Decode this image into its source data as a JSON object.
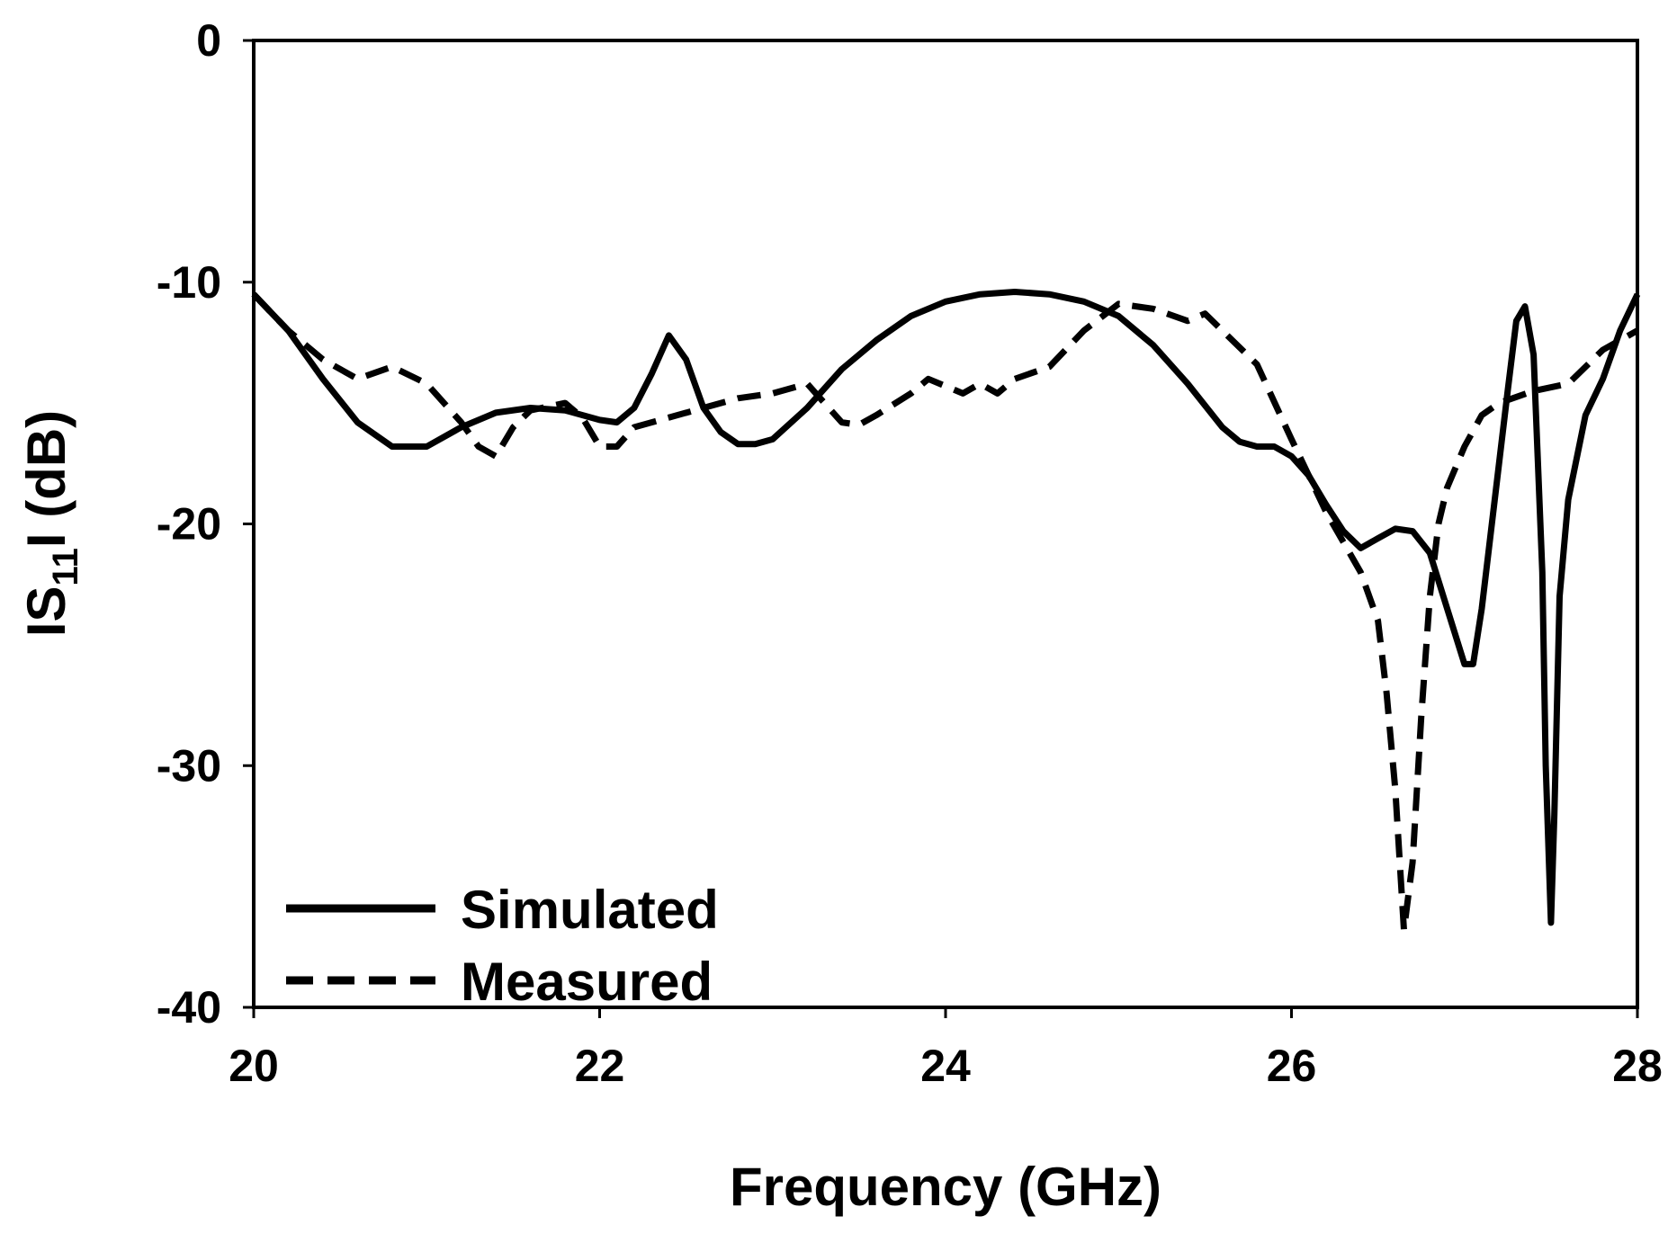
{
  "chart_data": {
    "type": "line",
    "title": "",
    "xlabel": "Frequency (GHz)",
    "ylabel": {
      "prefix": "IS",
      "subscript": "11",
      "suffix": "I (dB)"
    },
    "xlim": [
      20,
      28
    ],
    "ylim": [
      -40,
      0
    ],
    "xticks": [
      20,
      22,
      24,
      26,
      28
    ],
    "yticks": [
      0,
      -10,
      -20,
      -30,
      -40
    ],
    "xtick_labels": [
      "20",
      "22",
      "24",
      "26",
      "28"
    ],
    "ytick_labels": [
      "0",
      "-10",
      "-20",
      "-30",
      "-40"
    ],
    "grid": false,
    "legend_position": "bottom-left",
    "line_color": "#000000",
    "series": [
      {
        "name": "Simulated",
        "style": "solid",
        "x": [
          20.0,
          20.2,
          20.4,
          20.6,
          20.8,
          21.0,
          21.2,
          21.4,
          21.6,
          21.8,
          22.0,
          22.1,
          22.2,
          22.3,
          22.4,
          22.5,
          22.6,
          22.7,
          22.8,
          22.9,
          23.0,
          23.2,
          23.4,
          23.6,
          23.8,
          24.0,
          24.2,
          24.4,
          24.6,
          24.8,
          25.0,
          25.2,
          25.4,
          25.6,
          25.7,
          25.8,
          25.9,
          26.0,
          26.1,
          26.2,
          26.3,
          26.4,
          26.5,
          26.6,
          26.7,
          26.8,
          26.9,
          27.0,
          27.05,
          27.1,
          27.15,
          27.2,
          27.25,
          27.3,
          27.35,
          27.4,
          27.45,
          27.47,
          27.5,
          27.52,
          27.55,
          27.6,
          27.7,
          27.8,
          27.9,
          28.0
        ],
        "y": [
          -10.5,
          -12.0,
          -14.0,
          -15.8,
          -16.8,
          -16.8,
          -16.0,
          -15.4,
          -15.2,
          -15.3,
          -15.7,
          -15.8,
          -15.2,
          -13.8,
          -12.2,
          -13.2,
          -15.2,
          -16.2,
          -16.7,
          -16.7,
          -16.5,
          -15.2,
          -13.6,
          -12.4,
          -11.4,
          -10.8,
          -10.5,
          -10.4,
          -10.5,
          -10.8,
          -11.4,
          -12.6,
          -14.2,
          -16.0,
          -16.6,
          -16.8,
          -16.8,
          -17.2,
          -18.0,
          -19.2,
          -20.3,
          -21.0,
          -20.6,
          -20.2,
          -20.3,
          -21.2,
          -23.5,
          -25.8,
          -25.8,
          -23.5,
          -20.5,
          -17.5,
          -14.5,
          -11.6,
          -11.0,
          -13.0,
          -22.0,
          -30.0,
          -36.5,
          -32.0,
          -23.0,
          -19.0,
          -15.5,
          -14.0,
          -12.0,
          -10.5
        ]
      },
      {
        "name": "Measured",
        "style": "dashed",
        "x": [
          20.0,
          20.2,
          20.4,
          20.6,
          20.8,
          21.0,
          21.2,
          21.3,
          21.4,
          21.5,
          21.6,
          21.8,
          21.9,
          22.0,
          22.1,
          22.2,
          22.4,
          22.6,
          22.8,
          23.0,
          23.2,
          23.3,
          23.4,
          23.5,
          23.6,
          23.8,
          23.9,
          24.0,
          24.1,
          24.2,
          24.3,
          24.4,
          24.6,
          24.8,
          25.0,
          25.2,
          25.4,
          25.5,
          25.6,
          25.8,
          26.0,
          26.2,
          26.4,
          26.5,
          26.55,
          26.6,
          26.65,
          26.7,
          26.75,
          26.8,
          26.85,
          26.9,
          27.0,
          27.1,
          27.2,
          27.4,
          27.6,
          27.8,
          28.0
        ],
        "y": [
          -10.5,
          -12.0,
          -13.2,
          -14.0,
          -13.5,
          -14.2,
          -15.8,
          -16.8,
          -17.2,
          -16.0,
          -15.3,
          -15.0,
          -15.6,
          -16.8,
          -16.8,
          -16.0,
          -15.6,
          -15.2,
          -14.8,
          -14.6,
          -14.2,
          -15.0,
          -15.8,
          -15.9,
          -15.5,
          -14.6,
          -14.0,
          -14.3,
          -14.6,
          -14.2,
          -14.6,
          -14.0,
          -13.5,
          -12.0,
          -10.9,
          -11.1,
          -11.6,
          -11.3,
          -12.0,
          -13.4,
          -16.5,
          -19.5,
          -22.0,
          -24.0,
          -27.0,
          -31.0,
          -36.8,
          -34.0,
          -28.0,
          -23.0,
          -20.0,
          -18.5,
          -16.8,
          -15.5,
          -15.0,
          -14.5,
          -14.2,
          -12.8,
          -12.0
        ]
      }
    ]
  }
}
